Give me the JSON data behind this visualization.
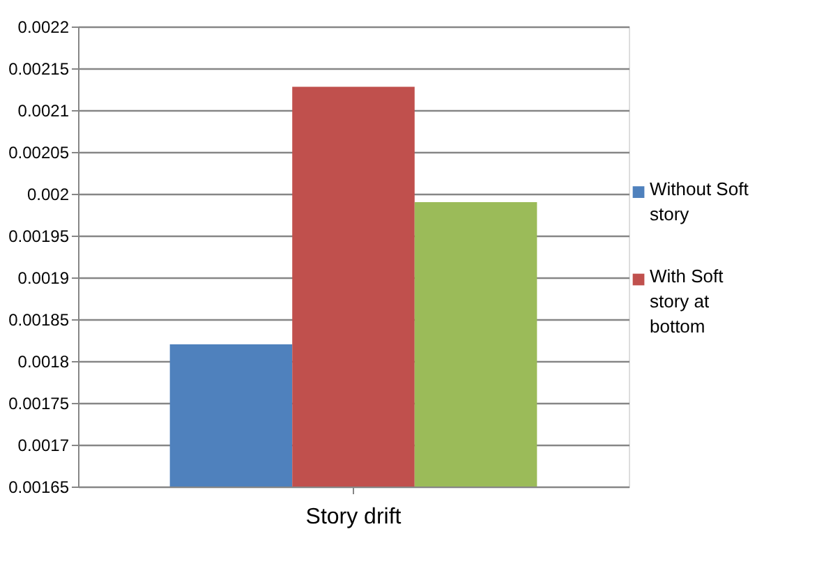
{
  "chart_data": {
    "type": "bar",
    "categories": [
      "Story drift"
    ],
    "series": [
      {
        "name": "Without Soft story",
        "color": "#4f81bd",
        "values": [
          0.00182
        ]
      },
      {
        "name": "With Soft story at bottom",
        "color": "#c0504d",
        "values": [
          0.002128
        ]
      },
      {
        "color": "#9bbb59",
        "values": [
          0.00199
        ]
      }
    ],
    "ylim": [
      0.00165,
      0.0022
    ],
    "yticks": [
      0.00165,
      0.0017,
      0.00175,
      0.0018,
      0.00185,
      0.0019,
      0.00195,
      0.002,
      0.00205,
      0.0021,
      0.00215,
      0.0022
    ],
    "grid": "y",
    "legend": "right"
  }
}
